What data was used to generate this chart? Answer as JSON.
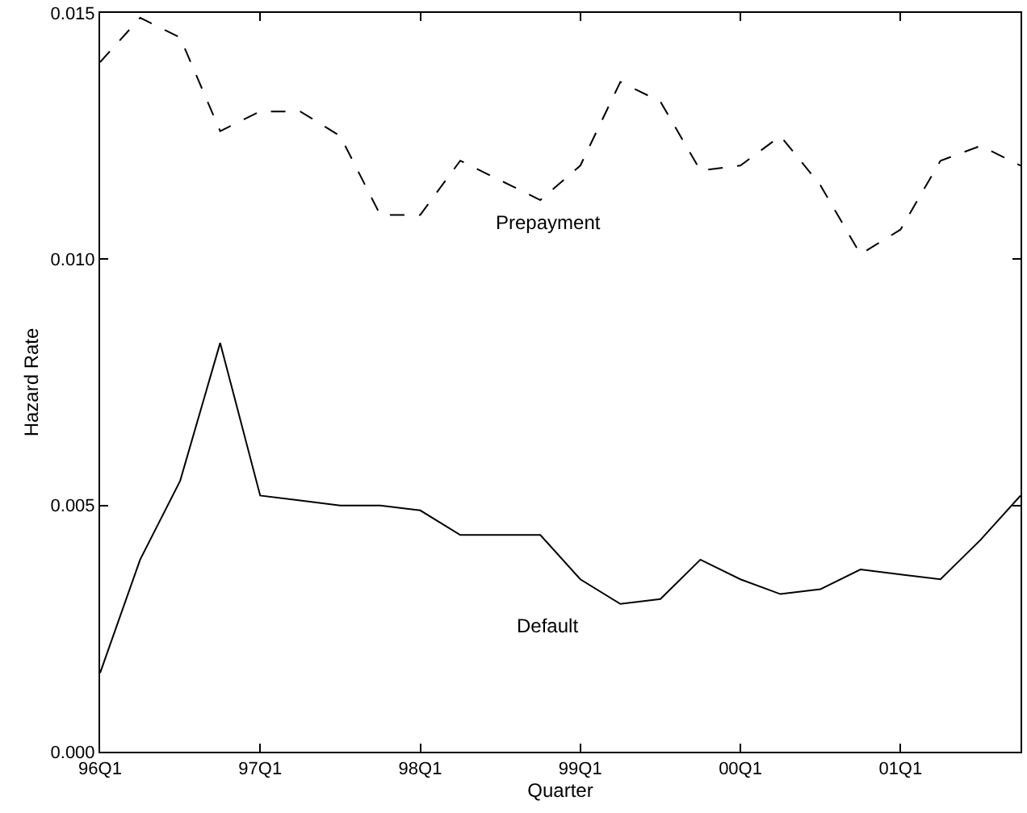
{
  "chart_data": {
    "type": "line",
    "xlabel": "Quarter",
    "ylabel": "Hazard Rate",
    "categories": [
      "96Q1",
      null,
      null,
      null,
      "97Q1",
      null,
      null,
      null,
      "98Q1",
      null,
      null,
      null,
      "99Q1",
      null,
      null,
      null,
      "00Q1",
      null,
      null,
      null,
      "01Q1",
      null,
      null,
      null
    ],
    "series": [
      {
        "name": "Prepayment",
        "color": "#000000",
        "line_style": "dashed",
        "values": [
          0.014,
          0.0149,
          0.0145,
          0.0126,
          0.013,
          0.013,
          0.0125,
          0.0109,
          0.0109,
          0.012,
          0.0116,
          0.0112,
          0.0119,
          0.0136,
          0.0132,
          0.0118,
          0.0119,
          0.0125,
          0.0115,
          0.0101,
          0.0106,
          0.012,
          0.0123,
          0.0119
        ]
      },
      {
        "name": "Default",
        "color": "#000000",
        "line_style": "solid",
        "values": [
          0.0016,
          0.0039,
          0.0055,
          0.0083,
          0.0052,
          0.0051,
          0.005,
          0.005,
          0.0049,
          0.0044,
          0.0044,
          0.0044,
          0.0035,
          0.003,
          0.0031,
          0.0039,
          0.0035,
          0.0032,
          0.0033,
          0.0037,
          0.0036,
          0.0035,
          0.0043,
          0.0052
        ]
      }
    ],
    "ylim": [
      0,
      0.015
    ],
    "yticks": [
      {
        "value": 0,
        "label": "0.000"
      },
      {
        "value": 0.005,
        "label": "0.005"
      },
      {
        "value": 0.01,
        "label": "0.010"
      },
      {
        "value": 0.015,
        "label": "0.015"
      }
    ],
    "legend": false,
    "marker": "none"
  }
}
